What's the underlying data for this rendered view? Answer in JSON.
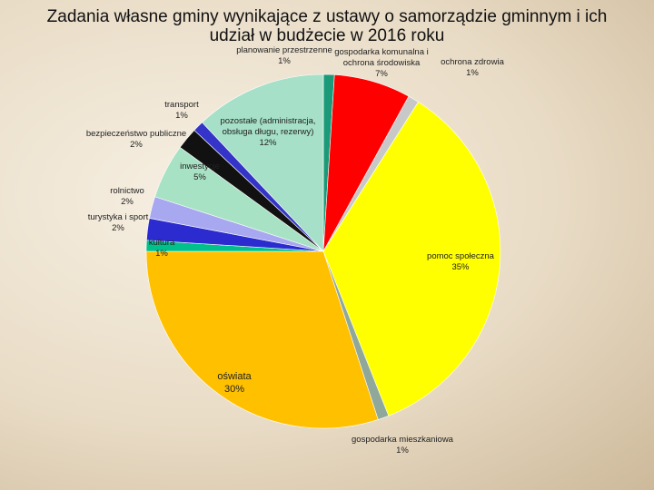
{
  "chart_data": {
    "type": "pie",
    "title": "Zadania własne gminy wynikające z ustawy o samorządzie gminnym i ich udział w budżecie w 2016 roku",
    "categories": [
      "planowanie przestrzenne",
      "gospodarka komunalna i ochrona środowiska",
      "ochrona zdrowia",
      "pomoc społeczna",
      "gospodarka mieszkaniowa",
      "oświata",
      "kultura",
      "turystyka i sport",
      "rolnictwo",
      "inwestycje",
      "bezpieczeństwo publiczne",
      "transport",
      "pozostałe (administracja, obsługa długu, rezerwy)"
    ],
    "values": [
      1,
      7,
      1,
      35,
      1,
      30,
      1,
      2,
      2,
      5,
      2,
      1,
      12
    ],
    "value_labels": [
      "1%",
      "7%",
      "1%",
      "35%",
      "1%",
      "30%",
      "1%",
      "2%",
      "2%",
      "5%",
      "2%",
      "1%",
      "12%"
    ],
    "colors": [
      "#1a9a78",
      "#ff0000",
      "#c8c8c8",
      "#ffff00",
      "#8fa89a",
      "#ffc000",
      "#00c08c",
      "#2b2bd0",
      "#a8a8f0",
      "#a8e2c4",
      "#111111",
      "#3434c8",
      "#a6e0c8"
    ]
  }
}
